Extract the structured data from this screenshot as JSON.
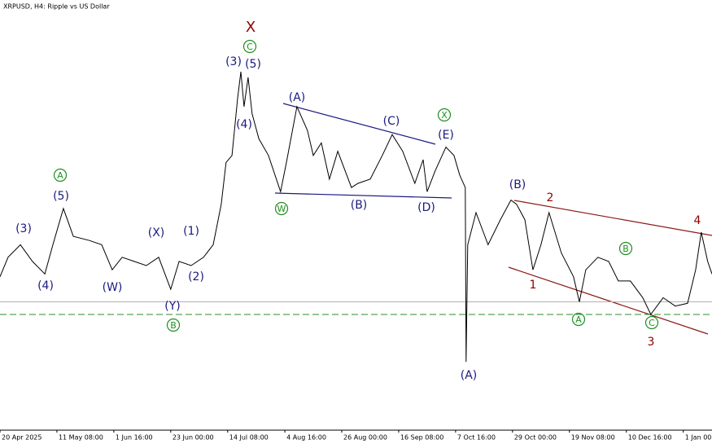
{
  "chart_data": {
    "type": "line",
    "title": "XRPUSD, H4:  Ripple vs US Dollar",
    "color": "#000000",
    "x": [
      0,
      3.0,
      7.6,
      12.1,
      16.7,
      19.7,
      23.6,
      27.3,
      33.3,
      37.9,
      41.8,
      45.5,
      50,
      54.5,
      59.1,
      63.6,
      66.7,
      71.2,
      75.8,
      79.4,
      82.4,
      84.2,
      86.4,
      88.5,
      89.7,
      90.9,
      92.4,
      93.9,
      96.4,
      100,
      104.5,
      106.7,
      110.6,
      114.5,
      116.7,
      119.7,
      122.7,
      125.8,
      130.9,
      133.3,
      137.9,
      142.4,
      146.1,
      150,
      154.5,
      157.6,
      159.1,
      162.1,
      166.1,
      169.1,
      171.2,
      173.3,
      173.6,
      174.2,
      177.3,
      181.8,
      186.4,
      190.3,
      192.4,
      195.5,
      198.5,
      201.5,
      204.5,
      209.1,
      213.6,
      215.8,
      218.2,
      222.7,
      226.7,
      230.3,
      234.8,
      239.4,
      242.4,
      247,
      251.5,
      256.1,
      259.1,
      261.2,
      263.6,
      265.2
    ],
    "values": [
      2.18,
      2.32,
      2.41,
      2.29,
      2.2,
      2.41,
      2.67,
      2.47,
      2.44,
      2.41,
      2.23,
      2.32,
      2.29,
      2.26,
      2.32,
      2.09,
      2.29,
      2.26,
      2.32,
      2.41,
      2.7,
      3.0,
      3.05,
      3.46,
      3.65,
      3.4,
      3.61,
      3.35,
      3.17,
      3.05,
      2.79,
      3.0,
      3.4,
      3.23,
      3.05,
      3.14,
      2.88,
      3.08,
      2.82,
      2.85,
      2.88,
      3.05,
      3.2,
      3.08,
      2.85,
      3.02,
      2.79,
      2.94,
      3.11,
      3.05,
      2.91,
      2.82,
      1.57,
      2.41,
      2.64,
      2.41,
      2.59,
      2.73,
      2.7,
      2.59,
      2.23,
      2.41,
      2.64,
      2.35,
      2.18,
      2.0,
      2.23,
      2.32,
      2.29,
      2.15,
      2.15,
      2.03,
      1.91,
      2.03,
      1.97,
      1.99,
      2.23,
      2.5,
      2.29,
      2.2
    ],
    "xlim": [
      0,
      265.2
    ],
    "ylim": [
      1.08,
      4.165
    ],
    "xticks": [
      {
        "value": 0,
        "label": "20 Apr 2025"
      },
      {
        "value": 21.2,
        "label": "11 May 08:00"
      },
      {
        "value": 42.4,
        "label": "1 Jun 16:00"
      },
      {
        "value": 63.6,
        "label": "23 Jun 00:00"
      },
      {
        "value": 84.8,
        "label": "14 Jul 08:00"
      },
      {
        "value": 106.1,
        "label": "4 Aug 16:00"
      },
      {
        "value": 127.3,
        "label": "26 Aug 00:00"
      },
      {
        "value": 148.5,
        "label": "16 Sep 08:00"
      },
      {
        "value": 169.7,
        "label": "7 Oct 16:00"
      },
      {
        "value": 190.9,
        "label": "29 Oct 00:00"
      },
      {
        "value": 212.1,
        "label": "19 Nov 08:00"
      },
      {
        "value": 233.3,
        "label": "10 Dec 16:00"
      },
      {
        "value": 254.5,
        "label": "1 Jan 00:00"
      }
    ],
    "hlines": [
      {
        "value": 2.0,
        "color": "#b0b0b0",
        "style": "solid"
      },
      {
        "value": 1.91,
        "color": "#2e8b2e",
        "style": "dashed"
      }
    ],
    "annotations": [
      {
        "text": "X",
        "color": "#8b0000",
        "circled": false
      },
      {
        "text": "C",
        "color": "#1f8f1f",
        "circled": true
      },
      {
        "text": "(3)",
        "color": "#1a1a80",
        "circled": false
      },
      {
        "text": "(5)",
        "color": "#1a1a80",
        "circled": false
      },
      {
        "text": "(4)",
        "color": "#1a1a80",
        "circled": false
      },
      {
        "text": "(A)",
        "color": "#1a1a80",
        "circled": false
      },
      {
        "text": "(C)",
        "color": "#1a1a80",
        "circled": false
      },
      {
        "text": "X",
        "color": "#1f8f1f",
        "circled": true
      },
      {
        "text": "(E)",
        "color": "#1a1a80",
        "circled": false
      },
      {
        "text": "W",
        "color": "#1f8f1f",
        "circled": true
      },
      {
        "text": "(B)",
        "color": "#1a1a80",
        "circled": false
      },
      {
        "text": "(D)",
        "color": "#1a1a80",
        "circled": false
      },
      {
        "text": "(3)",
        "color": "#1a1a80",
        "circled": false
      },
      {
        "text": "(4)",
        "color": "#1a1a80",
        "circled": false
      },
      {
        "text": "(5)",
        "color": "#1a1a80",
        "circled": false
      },
      {
        "text": "A",
        "color": "#1f8f1f",
        "circled": true
      },
      {
        "text": "(W)",
        "color": "#1a1a80",
        "circled": false
      },
      {
        "text": "(X)",
        "color": "#1a1a80",
        "circled": false
      },
      {
        "text": "(1)",
        "color": "#1a1a80",
        "circled": false
      },
      {
        "text": "(2)",
        "color": "#1a1a80",
        "circled": false
      },
      {
        "text": "(Y)",
        "color": "#1a1a80",
        "circled": false
      },
      {
        "text": "B",
        "color": "#1f8f1f",
        "circled": true
      },
      {
        "text": "(B)",
        "color": "#1a1a80",
        "circled": false
      },
      {
        "text": "2",
        "color": "#8b0000",
        "circled": false
      },
      {
        "text": "1",
        "color": "#8b0000",
        "circled": false
      },
      {
        "text": "(A)",
        "color": "#1a1a80",
        "circled": false
      },
      {
        "text": "B",
        "color": "#1f8f1f",
        "circled": true
      },
      {
        "text": "A",
        "color": "#1f8f1f",
        "circled": true
      },
      {
        "text": "C",
        "color": "#1f8f1f",
        "circled": true
      },
      {
        "text": "3",
        "color": "#8b0000",
        "circled": false
      },
      {
        "text": "4",
        "color": "#8b0000",
        "circled": false
      }
    ]
  }
}
